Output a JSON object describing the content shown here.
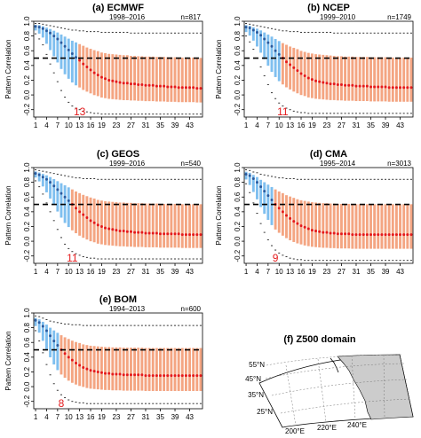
{
  "colors": {
    "pre_crossing_box": "#7fbfef",
    "post_crossing_box": "#f4a582",
    "median": "#e41a1c",
    "median_pre": "#2b5a9e",
    "reference_line": "#000000",
    "crossing_label": "#e41a1c",
    "land": "#cccccc",
    "ocean": "#ffffff"
  },
  "chart_data": [
    {
      "type": "box",
      "panel": "(a)",
      "title": "ECMWF",
      "period": "1998–2016",
      "n_label": "n=817",
      "ylabel": "Pattern Correlation",
      "ylim": [
        -0.3,
        1.0
      ],
      "yticks": [
        "-0.2",
        "0.0",
        "0.2",
        "0.4",
        "0.6",
        "0.8",
        "1.0"
      ],
      "x_tick_labels": [
        "1",
        "4",
        "7",
        "10",
        "13",
        "16",
        "19",
        "23",
        "27",
        "31",
        "35",
        "39",
        "43"
      ],
      "reference_line": 0.5,
      "crossing_label": "13",
      "crossing_day": 13,
      "days": 46,
      "median": [
        0.93,
        0.92,
        0.9,
        0.87,
        0.84,
        0.8,
        0.76,
        0.71,
        0.66,
        0.61,
        0.56,
        0.51,
        0.47,
        0.42,
        0.38,
        0.34,
        0.3,
        0.27,
        0.24,
        0.22,
        0.2,
        0.19,
        0.18,
        0.17,
        0.16,
        0.16,
        0.15,
        0.15,
        0.14,
        0.14,
        0.13,
        0.13,
        0.13,
        0.12,
        0.12,
        0.12,
        0.11,
        0.11,
        0.11,
        0.1,
        0.1,
        0.1,
        0.1,
        0.1,
        0.09,
        0.09
      ],
      "upper_whisker": [
        0.97,
        0.97,
        0.96,
        0.95,
        0.94,
        0.93,
        0.92,
        0.91,
        0.9,
        0.89,
        0.88,
        0.88,
        0.87,
        0.87,
        0.86,
        0.86,
        0.86,
        0.86,
        0.85,
        0.85,
        0.85,
        0.85,
        0.85,
        0.85,
        0.85,
        0.85,
        0.84,
        0.84,
        0.84,
        0.84,
        0.84,
        0.84,
        0.84,
        0.84,
        0.84,
        0.84,
        0.84,
        0.84,
        0.84,
        0.84,
        0.84,
        0.84,
        0.84,
        0.84,
        0.84,
        0.84
      ],
      "lower_whisker": [
        0.83,
        0.76,
        0.68,
        0.55,
        0.42,
        0.3,
        0.18,
        0.06,
        -0.03,
        -0.1,
        -0.15,
        -0.18,
        -0.2,
        -0.22,
        -0.23,
        -0.24,
        -0.25,
        -0.25,
        -0.26,
        -0.26,
        -0.26,
        -0.26,
        -0.26,
        -0.26,
        -0.26,
        -0.26,
        -0.26,
        -0.26,
        -0.26,
        -0.26,
        -0.26,
        -0.26,
        -0.26,
        -0.26,
        -0.26,
        -0.26,
        -0.26,
        -0.26,
        -0.26,
        -0.26,
        -0.26,
        -0.26,
        -0.26,
        -0.26,
        -0.26,
        -0.26
      ]
    },
    {
      "type": "box",
      "panel": "(b)",
      "title": "NCEP",
      "period": "1999–2010",
      "n_label": "n=1749",
      "ylabel": "Pattern Correlation",
      "ylim": [
        -0.3,
        1.0
      ],
      "yticks": [
        "-0.2",
        "0.0",
        "0.2",
        "0.4",
        "0.6",
        "0.8",
        "1.0"
      ],
      "x_tick_labels": [
        "1",
        "4",
        "7",
        "10",
        "13",
        "16",
        "19",
        "23",
        "27",
        "31",
        "35",
        "39",
        "43"
      ],
      "reference_line": 0.5,
      "crossing_label": "11",
      "crossing_day": 11,
      "days": 46,
      "median": [
        0.92,
        0.91,
        0.88,
        0.85,
        0.81,
        0.76,
        0.71,
        0.66,
        0.6,
        0.55,
        0.5,
        0.45,
        0.41,
        0.37,
        0.33,
        0.29,
        0.26,
        0.23,
        0.21,
        0.19,
        0.18,
        0.17,
        0.16,
        0.15,
        0.15,
        0.14,
        0.14,
        0.13,
        0.13,
        0.13,
        0.12,
        0.12,
        0.12,
        0.12,
        0.11,
        0.11,
        0.11,
        0.11,
        0.11,
        0.1,
        0.1,
        0.1,
        0.1,
        0.1,
        0.1,
        0.1
      ],
      "upper_whisker": [
        0.97,
        0.96,
        0.95,
        0.94,
        0.93,
        0.92,
        0.91,
        0.9,
        0.89,
        0.88,
        0.87,
        0.87,
        0.86,
        0.86,
        0.86,
        0.85,
        0.85,
        0.85,
        0.85,
        0.85,
        0.85,
        0.85,
        0.85,
        0.85,
        0.84,
        0.84,
        0.84,
        0.84,
        0.84,
        0.84,
        0.84,
        0.84,
        0.84,
        0.84,
        0.84,
        0.84,
        0.84,
        0.84,
        0.84,
        0.84,
        0.84,
        0.84,
        0.84,
        0.84,
        0.84,
        0.84
      ],
      "lower_whisker": [
        0.8,
        0.72,
        0.62,
        0.5,
        0.38,
        0.26,
        0.14,
        0.03,
        -0.05,
        -0.11,
        -0.15,
        -0.18,
        -0.2,
        -0.22,
        -0.23,
        -0.24,
        -0.24,
        -0.25,
        -0.25,
        -0.25,
        -0.25,
        -0.25,
        -0.25,
        -0.25,
        -0.25,
        -0.25,
        -0.25,
        -0.25,
        -0.25,
        -0.25,
        -0.25,
        -0.25,
        -0.25,
        -0.25,
        -0.25,
        -0.25,
        -0.25,
        -0.25,
        -0.25,
        -0.25,
        -0.25,
        -0.25,
        -0.25,
        -0.25,
        -0.25,
        -0.25
      ]
    },
    {
      "type": "box",
      "panel": "(c)",
      "title": "GEOS",
      "period": "1999–2016",
      "n_label": "n=540",
      "ylabel": "Pattern Correlation",
      "ylim": [
        -0.3,
        1.0
      ],
      "yticks": [
        "-0.2",
        "0.0",
        "0.2",
        "0.4",
        "0.6",
        "0.8",
        "1.0"
      ],
      "x_tick_labels": [
        "1",
        "4",
        "7",
        "10",
        "13",
        "16",
        "19",
        "23",
        "27",
        "31",
        "35",
        "39",
        "43"
      ],
      "reference_line": 0.5,
      "crossing_label": "11",
      "crossing_day": 11,
      "days": 46,
      "median": [
        0.92,
        0.9,
        0.87,
        0.84,
        0.8,
        0.75,
        0.7,
        0.65,
        0.6,
        0.55,
        0.5,
        0.45,
        0.4,
        0.36,
        0.32,
        0.28,
        0.25,
        0.22,
        0.2,
        0.18,
        0.17,
        0.16,
        0.15,
        0.14,
        0.14,
        0.13,
        0.13,
        0.12,
        0.12,
        0.12,
        0.11,
        0.11,
        0.11,
        0.11,
        0.1,
        0.1,
        0.1,
        0.1,
        0.1,
        0.1,
        0.09,
        0.09,
        0.09,
        0.09,
        0.09,
        0.09
      ],
      "upper_whisker": [
        0.97,
        0.96,
        0.95,
        0.94,
        0.93,
        0.92,
        0.91,
        0.9,
        0.89,
        0.88,
        0.87,
        0.86,
        0.86,
        0.85,
        0.85,
        0.85,
        0.85,
        0.84,
        0.84,
        0.84,
        0.84,
        0.84,
        0.84,
        0.84,
        0.84,
        0.84,
        0.84,
        0.84,
        0.84,
        0.84,
        0.84,
        0.84,
        0.84,
        0.84,
        0.84,
        0.84,
        0.84,
        0.84,
        0.84,
        0.84,
        0.84,
        0.84,
        0.84,
        0.84,
        0.84,
        0.84
      ],
      "lower_whisker": [
        0.82,
        0.74,
        0.64,
        0.52,
        0.4,
        0.28,
        0.16,
        0.05,
        -0.04,
        -0.1,
        -0.14,
        -0.17,
        -0.19,
        -0.21,
        -0.22,
        -0.23,
        -0.23,
        -0.24,
        -0.24,
        -0.24,
        -0.24,
        -0.24,
        -0.24,
        -0.24,
        -0.24,
        -0.24,
        -0.24,
        -0.24,
        -0.24,
        -0.24,
        -0.24,
        -0.24,
        -0.24,
        -0.24,
        -0.24,
        -0.24,
        -0.24,
        -0.24,
        -0.24,
        -0.24,
        -0.24,
        -0.24,
        -0.24,
        -0.24,
        -0.24,
        -0.24
      ]
    },
    {
      "type": "box",
      "panel": "(d)",
      "title": "CMA",
      "period": "1995–2014",
      "n_label": "n=3013",
      "ylabel": "Pattern Correlation",
      "ylim": [
        -0.3,
        1.0
      ],
      "yticks": [
        "-0.2",
        "0.0",
        "0.2",
        "0.4",
        "0.6",
        "0.8",
        "1.0"
      ],
      "x_tick_labels": [
        "1",
        "4",
        "7",
        "10",
        "13",
        "16",
        "19",
        "23",
        "27",
        "31",
        "35",
        "39",
        "43"
      ],
      "reference_line": 0.5,
      "crossing_label": "9",
      "crossing_day": 9,
      "days": 46,
      "median": [
        0.91,
        0.89,
        0.85,
        0.8,
        0.74,
        0.68,
        0.62,
        0.56,
        0.5,
        0.45,
        0.4,
        0.35,
        0.31,
        0.27,
        0.24,
        0.21,
        0.19,
        0.17,
        0.15,
        0.14,
        0.13,
        0.12,
        0.12,
        0.11,
        0.11,
        0.1,
        0.1,
        0.1,
        0.1,
        0.09,
        0.09,
        0.09,
        0.09,
        0.09,
        0.09,
        0.09,
        0.09,
        0.09,
        0.09,
        0.09,
        0.09,
        0.09,
        0.09,
        0.09,
        0.09,
        0.09
      ],
      "upper_whisker": [
        0.97,
        0.96,
        0.94,
        0.93,
        0.91,
        0.9,
        0.89,
        0.88,
        0.87,
        0.86,
        0.86,
        0.85,
        0.85,
        0.85,
        0.84,
        0.84,
        0.84,
        0.84,
        0.84,
        0.84,
        0.84,
        0.84,
        0.84,
        0.84,
        0.84,
        0.84,
        0.84,
        0.84,
        0.84,
        0.84,
        0.84,
        0.84,
        0.84,
        0.84,
        0.84,
        0.84,
        0.84,
        0.84,
        0.84,
        0.84,
        0.84,
        0.84,
        0.84,
        0.84,
        0.84,
        0.84
      ],
      "lower_whisker": [
        0.78,
        0.66,
        0.52,
        0.38,
        0.24,
        0.12,
        0.02,
        -0.06,
        -0.12,
        -0.16,
        -0.19,
        -0.21,
        -0.23,
        -0.24,
        -0.25,
        -0.25,
        -0.26,
        -0.26,
        -0.26,
        -0.26,
        -0.26,
        -0.26,
        -0.26,
        -0.26,
        -0.26,
        -0.26,
        -0.26,
        -0.26,
        -0.26,
        -0.26,
        -0.26,
        -0.26,
        -0.26,
        -0.26,
        -0.26,
        -0.26,
        -0.26,
        -0.26,
        -0.26,
        -0.26,
        -0.26,
        -0.26,
        -0.26,
        -0.26,
        -0.26,
        -0.26
      ]
    },
    {
      "type": "box",
      "panel": "(e)",
      "title": "BOM",
      "period": "1994–2013",
      "n_label": "n=600",
      "ylabel": "Pattern Correlation",
      "ylim": [
        -0.3,
        1.0
      ],
      "yticks": [
        "-0.2",
        "0.0",
        "0.2",
        "0.4",
        "0.6",
        "0.8",
        "1.0"
      ],
      "x_tick_labels": [
        "1",
        "4",
        "7",
        "10",
        "13",
        "16",
        "19",
        "23",
        "27",
        "31",
        "35",
        "39",
        "43"
      ],
      "reference_line": 0.5,
      "crossing_label": "8",
      "crossing_day": 8,
      "days": 46,
      "median": [
        0.9,
        0.87,
        0.82,
        0.76,
        0.69,
        0.62,
        0.56,
        0.5,
        0.45,
        0.4,
        0.36,
        0.32,
        0.29,
        0.26,
        0.24,
        0.22,
        0.21,
        0.2,
        0.19,
        0.18,
        0.18,
        0.17,
        0.17,
        0.17,
        0.16,
        0.16,
        0.16,
        0.16,
        0.16,
        0.16,
        0.15,
        0.15,
        0.15,
        0.15,
        0.15,
        0.15,
        0.15,
        0.15,
        0.15,
        0.15,
        0.15,
        0.15,
        0.15,
        0.15,
        0.15,
        0.15
      ],
      "upper_whisker": [
        0.96,
        0.95,
        0.93,
        0.91,
        0.89,
        0.88,
        0.87,
        0.86,
        0.85,
        0.85,
        0.84,
        0.84,
        0.84,
        0.83,
        0.83,
        0.83,
        0.83,
        0.83,
        0.83,
        0.83,
        0.83,
        0.83,
        0.83,
        0.83,
        0.83,
        0.83,
        0.83,
        0.83,
        0.83,
        0.83,
        0.83,
        0.83,
        0.83,
        0.83,
        0.83,
        0.83,
        0.83,
        0.83,
        0.83,
        0.83,
        0.83,
        0.83,
        0.83,
        0.83,
        0.83,
        0.83
      ],
      "lower_whisker": [
        0.76,
        0.62,
        0.46,
        0.3,
        0.16,
        0.04,
        -0.05,
        -0.11,
        -0.15,
        -0.18,
        -0.2,
        -0.21,
        -0.22,
        -0.22,
        -0.23,
        -0.23,
        -0.23,
        -0.23,
        -0.23,
        -0.23,
        -0.23,
        -0.23,
        -0.23,
        -0.23,
        -0.23,
        -0.23,
        -0.23,
        -0.23,
        -0.23,
        -0.23,
        -0.23,
        -0.23,
        -0.23,
        -0.23,
        -0.23,
        -0.23,
        -0.23,
        -0.23,
        -0.23,
        -0.23,
        -0.23,
        -0.23,
        -0.23,
        -0.23,
        -0.23,
        -0.23
      ]
    }
  ],
  "map": {
    "title": "(f)  Z500 domain",
    "lat_labels": [
      "25°N",
      "35°N",
      "45°N",
      "55°N"
    ],
    "lon_labels": [
      "200°E",
      "220°E",
      "240°E"
    ]
  }
}
